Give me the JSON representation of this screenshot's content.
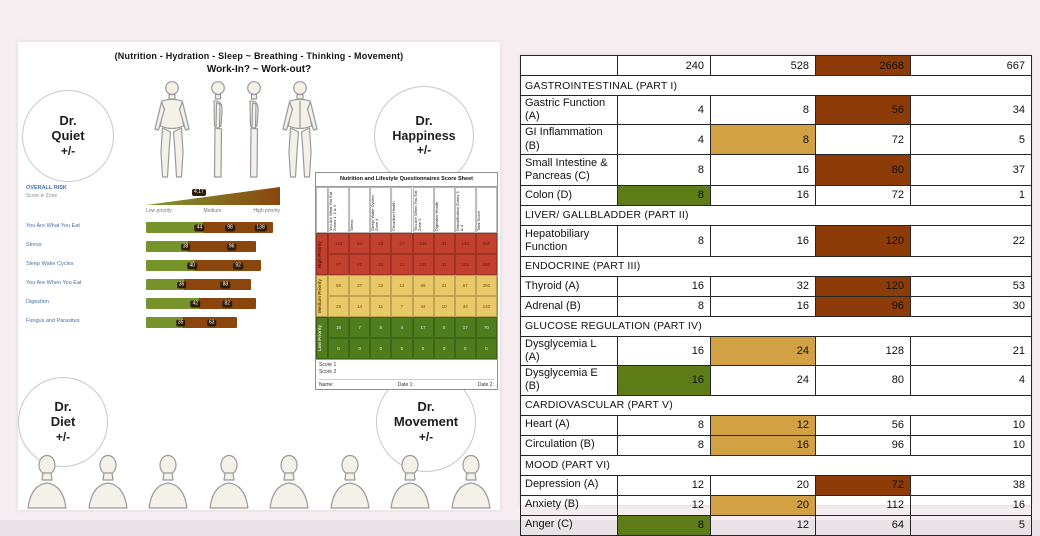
{
  "colors": {
    "brown": "#8e3c07",
    "tan": "#d2a144",
    "green": "#5d7c17",
    "page_bg": "#f5edf0"
  },
  "left_panel": {
    "title_line1": "(Nutrition - Hydration - Sleep ~ Breathing - Thinking - Movement)",
    "title_line2": "Work-In? ~ Work-out?",
    "doctors": [
      {
        "prefix": "Dr.",
        "name": "Quiet",
        "suffix": "+/-"
      },
      {
        "prefix": "Dr.",
        "name": "Happiness",
        "suffix": "+/-"
      },
      {
        "prefix": "Dr.",
        "name": "Diet",
        "suffix": "+/-"
      },
      {
        "prefix": "Dr.",
        "name": "Movement",
        "suffix": "+/-"
      }
    ],
    "top_figures": [
      "human-figure-front-icon",
      "human-figure-side-icon",
      "human-figure-side-icon",
      "human-figure-back-icon"
    ],
    "bottom_figures": [
      "bust-front-icon",
      "bust-three-quarter-icon",
      "bust-side-icon",
      "bust-front-icon",
      "bust-back-icon",
      "bust-side-icon",
      "bust-three-quarter-icon",
      "bust-front-icon"
    ],
    "risk_chart": {
      "heading": "OVERALL RISK",
      "subheading": "Score in Zone",
      "gradient_marker": "4.17",
      "axis_labels": [
        "Low priority",
        "Medium",
        "High priority"
      ],
      "rows": [
        {
          "label": "You Are What You Eat",
          "width_pct": 95,
          "green_pct": 45,
          "tags": [
            {
              "pct": 42,
              "text": "44"
            },
            {
              "pct": 66,
              "text": "98"
            },
            {
              "pct": 90,
              "text": "138"
            }
          ]
        },
        {
          "label": "Stress",
          "width_pct": 82,
          "green_pct": 38,
          "tags": [
            {
              "pct": 36,
              "text": "38"
            },
            {
              "pct": 78,
              "text": "96"
            }
          ]
        },
        {
          "label": "Sleep Wake Cycles",
          "width_pct": 86,
          "green_pct": 42,
          "tags": [
            {
              "pct": 40,
              "text": "40"
            },
            {
              "pct": 80,
              "text": "92"
            }
          ]
        },
        {
          "label": "You Are When You Eat",
          "width_pct": 78,
          "green_pct": 36,
          "tags": [
            {
              "pct": 34,
              "text": "36"
            },
            {
              "pct": 76,
              "text": "88"
            }
          ]
        },
        {
          "label": "Digestion",
          "width_pct": 82,
          "green_pct": 48,
          "tags": [
            {
              "pct": 45,
              "text": "42"
            },
            {
              "pct": 74,
              "text": "82"
            }
          ]
        },
        {
          "label": "Fungus and Parasites",
          "width_pct": 68,
          "green_pct": 40,
          "tags": [
            {
              "pct": 38,
              "text": "35"
            },
            {
              "pct": 72,
              "text": "63"
            }
          ]
        }
      ]
    },
    "score_sheet": {
      "title": "Nutrition and Lifestyle Questionnaires Score Sheet",
      "columns": [
        "You Are What You Eat Zones 1, 2 & 3",
        "Stress",
        "Sleep/ Wake Cycles Zone 4",
        "Circadian Health",
        "You Are When You Eat Zone 5",
        "Digestive Health",
        "Detoxification Zones 3 & 4",
        "Total Score"
      ],
      "bands": [
        {
          "priority": "High Priority",
          "color": "red",
          "rows": [
            [
              "116",
              "54",
              "43",
              "27",
              "135",
              "41",
              "134",
              "560"
            ],
            [
              "87",
              "41",
              "33",
              "21",
              "101",
              "31",
              "101",
              "420"
            ]
          ]
        },
        {
          "priority": "Medium Priority",
          "color": "yellow",
          "rows": [
            [
              "58",
              "27",
              "22",
              "14",
              "68",
              "21",
              "67",
              "280"
            ],
            [
              "29",
              "14",
              "11",
              "7",
              "34",
              "10",
              "34",
              "140"
            ]
          ]
        },
        {
          "priority": "Low Priority",
          "color": "green",
          "rows": [
            [
              "15",
              "7",
              "6",
              "4",
              "17",
              "5",
              "17",
              "70"
            ],
            [
              "0",
              "0",
              "0",
              "0",
              "0",
              "0",
              "0",
              "0"
            ]
          ]
        }
      ],
      "footer_left": [
        "Score 1",
        "Score 2"
      ],
      "footer_fields": [
        "Name:",
        "Date 1:",
        "Date 2:"
      ]
    }
  },
  "right_table": {
    "rows": [
      {
        "type": "totals",
        "label": "",
        "values": [
          "240",
          "528",
          "2668",
          "667"
        ],
        "hl": 2,
        "hl_color": "brown"
      },
      {
        "type": "section",
        "label": "GASTROINTESTINAL (PART I)"
      },
      {
        "type": "data",
        "label": "Gastric Function (A)",
        "values": [
          "4",
          "8",
          "56",
          "34"
        ],
        "hl": 2,
        "hl_color": "brown"
      },
      {
        "type": "data",
        "label": "GI Inflammation (B)",
        "values": [
          "4",
          "8",
          "72",
          "5"
        ],
        "hl": 1,
        "hl_color": "tan"
      },
      {
        "type": "data",
        "label": "Small Intestine & Pancreas (C)",
        "values": [
          "8",
          "16",
          "80",
          "37"
        ],
        "hl": 2,
        "hl_color": "brown",
        "tall": true
      },
      {
        "type": "data",
        "label": "Colon (D)",
        "values": [
          "8",
          "16",
          "72",
          "1"
        ],
        "hl": 0,
        "hl_color": "green"
      },
      {
        "type": "section",
        "label": "LIVER/ GALLBLADDER (PART II)"
      },
      {
        "type": "data",
        "label": "Hepatobiliary Function",
        "values": [
          "8",
          "16",
          "120",
          "22"
        ],
        "hl": 2,
        "hl_color": "brown",
        "tall": true
      },
      {
        "type": "section",
        "label": "ENDOCRINE (PART III)"
      },
      {
        "type": "data",
        "label": "Thyroid (A)",
        "values": [
          "16",
          "32",
          "120",
          "53"
        ],
        "hl": 2,
        "hl_color": "brown"
      },
      {
        "type": "data",
        "label": "Adrenal (B)",
        "values": [
          "8",
          "16",
          "96",
          "30"
        ],
        "hl": 2,
        "hl_color": "brown"
      },
      {
        "type": "section",
        "label": "GLUCOSE REGULATION (PART IV)"
      },
      {
        "type": "data",
        "label": "Dysglycemia L (A)",
        "values": [
          "16",
          "24",
          "128",
          "21"
        ],
        "hl": 1,
        "hl_color": "tan"
      },
      {
        "type": "data",
        "label": "Dysglycemia E (B)",
        "values": [
          "16",
          "24",
          "80",
          "4"
        ],
        "hl": 0,
        "hl_color": "green"
      },
      {
        "type": "section",
        "label": "CARDIOVASCULAR (PART V)"
      },
      {
        "type": "data",
        "label": "Heart (A)",
        "values": [
          "8",
          "12",
          "56",
          "10"
        ],
        "hl": 1,
        "hl_color": "tan"
      },
      {
        "type": "data",
        "label": "Circulation (B)",
        "values": [
          "8",
          "16",
          "96",
          "10"
        ],
        "hl": 1,
        "hl_color": "tan"
      },
      {
        "type": "section",
        "label": "MOOD (PART VI)"
      },
      {
        "type": "data",
        "label": "Depression (A)",
        "values": [
          "12",
          "20",
          "72",
          "38"
        ],
        "hl": 2,
        "hl_color": "brown"
      },
      {
        "type": "data",
        "label": "Anxiety (B)",
        "values": [
          "12",
          "20",
          "112",
          "16"
        ],
        "hl": 1,
        "hl_color": "tan"
      },
      {
        "type": "data",
        "label": "Anger (C)",
        "values": [
          "8",
          "12",
          "64",
          "5"
        ],
        "hl": 0,
        "hl_color": "green"
      }
    ]
  }
}
